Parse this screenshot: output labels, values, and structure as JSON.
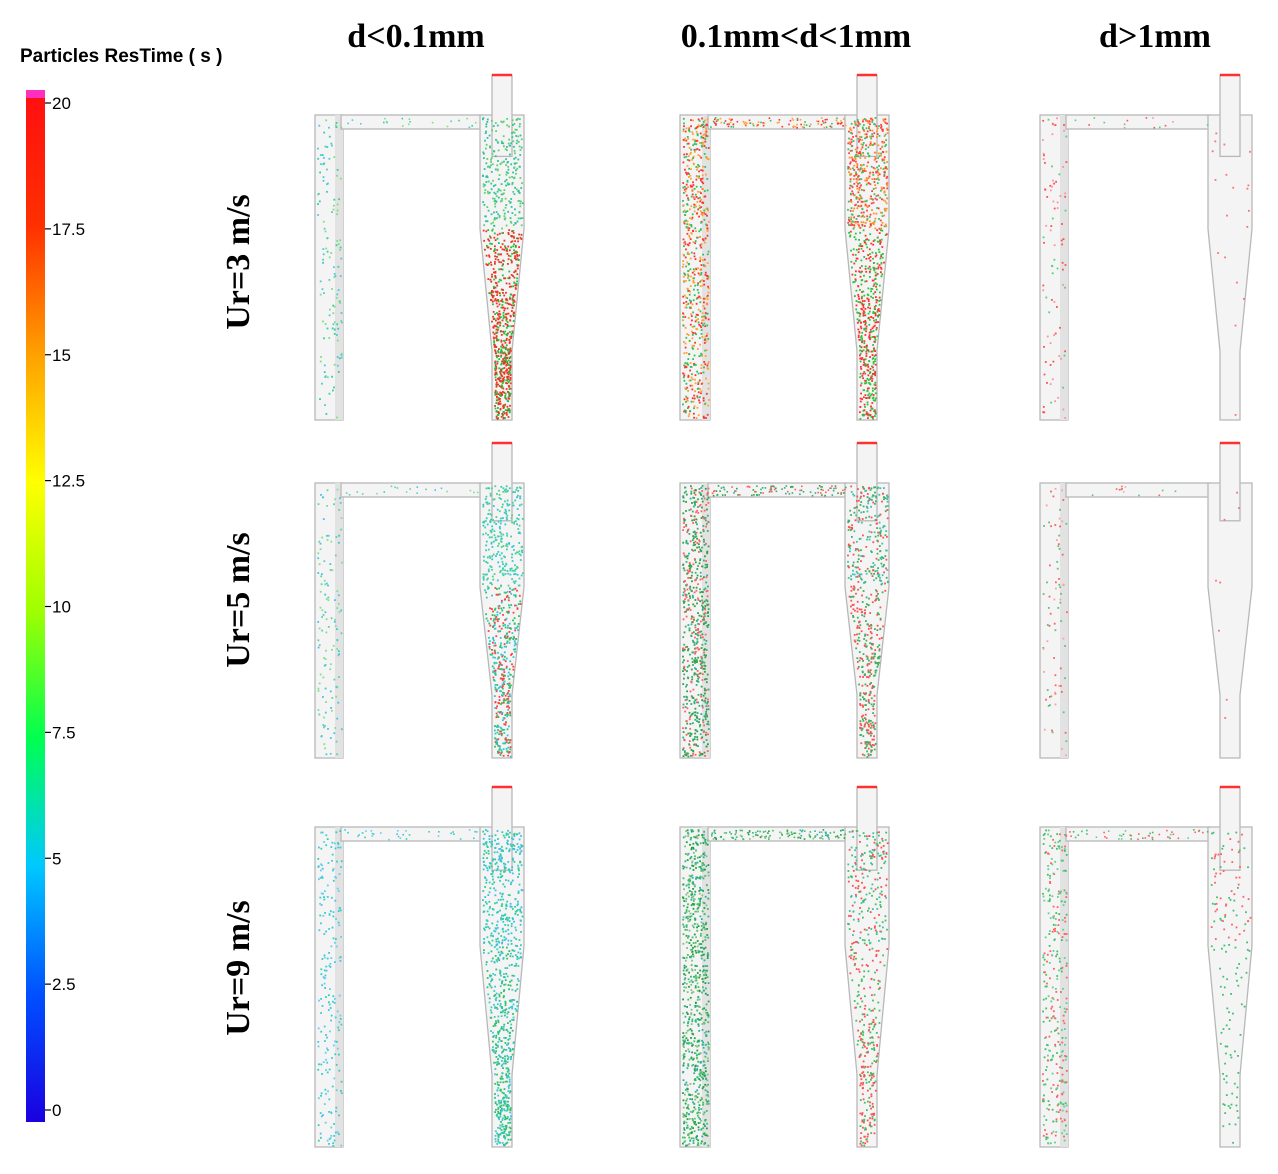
{
  "colorbar": {
    "title": "Particles ResTime ( s )",
    "ticks": [
      "20",
      "17.5",
      "15",
      "12.5",
      "10",
      "7.5",
      "5",
      "2.5",
      "0"
    ],
    "colors": [
      "#1a00e0",
      "#0050ff",
      "#00c8ff",
      "#00ff50",
      "#a0ff00",
      "#ffff00",
      "#ffa000",
      "#ff3000",
      "#ff1010"
    ],
    "top_color": "#ff30c0"
  },
  "columns": [
    {
      "label": "d<0.1mm"
    },
    {
      "label": "0.1mm<d<1mm"
    },
    {
      "label": "d>1mm"
    }
  ],
  "rows": [
    {
      "label": "Ur=3 m/s"
    },
    {
      "label": "Ur=5 m/s"
    },
    {
      "label": "Ur=9 m/s"
    }
  ],
  "panels": [
    {
      "riser": [
        "#30d0a0",
        "#7be080",
        "#50c8e0"
      ],
      "cyclone": [
        "#30c0a0",
        "#60d070"
      ],
      "cone": [
        "#ff3020",
        "#20c040",
        "#d04020"
      ],
      "riser_density": 0.5,
      "cyclone_density": 1.0,
      "cone_density": 2.0
    },
    {
      "riser": [
        "#ff3030",
        "#30c060",
        "#ffa030"
      ],
      "cyclone": [
        "#ff4040",
        "#40c060",
        "#ff9030"
      ],
      "cone": [
        "#ff3030",
        "#30c040"
      ],
      "riser_density": 2.5,
      "cyclone_density": 1.8,
      "cone_density": 1.5
    },
    {
      "riser": [
        "#ff5050",
        "#50d080",
        "#ff90a0"
      ],
      "cyclone": [
        "#ff7070"
      ],
      "cone": [
        "#ff7070"
      ],
      "riser_density": 0.35,
      "cyclone_density": 0.05,
      "cone_density": 0.02
    },
    {
      "riser": [
        "#40c8e0",
        "#60d0b0",
        "#80e090"
      ],
      "cyclone": [
        "#30c8d0",
        "#50d090"
      ],
      "cone": [
        "#ff4040",
        "#30c060",
        "#30c8d0"
      ],
      "riser_density": 0.5,
      "cyclone_density": 1.0,
      "cone_density": 1.3
    },
    {
      "riser": [
        "#30a040",
        "#ff6060",
        "#30b080"
      ],
      "cyclone": [
        "#40b060",
        "#ff5050",
        "#40c0b0"
      ],
      "cone": [
        "#40b060",
        "#ff5050"
      ],
      "riser_density": 2.5,
      "cyclone_density": 1.0,
      "cone_density": 1.0
    },
    {
      "riser": [
        "#ff6060",
        "#60c080",
        "#ffa0a0"
      ],
      "cyclone": [
        "#ff7070"
      ],
      "cone": [
        "#ff7070"
      ],
      "riser_density": 0.3,
      "cyclone_density": 0.02,
      "cone_density": 0.01
    },
    {
      "riser": [
        "#40c8e0",
        "#30d0c0",
        "#60d0f0"
      ],
      "cyclone": [
        "#30c8c0",
        "#30d090",
        "#40c0e0"
      ],
      "cone": [
        "#30c070",
        "#40c8d0"
      ],
      "riser_density": 0.8,
      "cyclone_density": 1.3,
      "cone_density": 1.5
    },
    {
      "riser": [
        "#20a040",
        "#40c060",
        "#30b0a0",
        "#80c080"
      ],
      "cyclone": [
        "#40c060",
        "#ff5050",
        "#40c0a0"
      ],
      "cone": [
        "#40c060",
        "#ff5050"
      ],
      "riser_density": 3.0,
      "cyclone_density": 0.8,
      "cone_density": 0.8
    },
    {
      "riser": [
        "#40c060",
        "#ff6060",
        "#60d090"
      ],
      "cyclone": [
        "#40c070",
        "#ff6060"
      ],
      "cone": [
        "#40c070"
      ],
      "riser_density": 1.2,
      "cyclone_density": 0.3,
      "cone_density": 0.2
    }
  ]
}
